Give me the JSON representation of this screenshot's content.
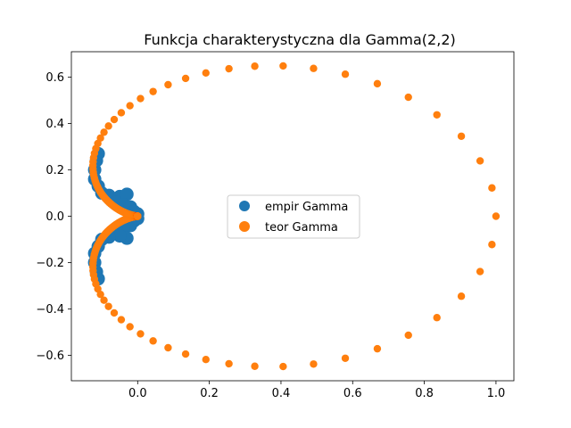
{
  "chart_data": {
    "type": "scatter",
    "title": "Funkcja charakterystyczna dla Gamma(2,2)",
    "xlabel": "",
    "ylabel": "",
    "xlim": [
      -0.185,
      1.05
    ],
    "ylim": [
      -0.71,
      0.71
    ],
    "x_ticks": [
      0.0,
      0.2,
      0.4,
      0.6,
      0.8,
      1.0
    ],
    "x_tick_labels": [
      "0.0",
      "0.2",
      "0.4",
      "0.6",
      "0.8",
      "1.0"
    ],
    "y_ticks": [
      -0.6,
      -0.4,
      -0.2,
      0.0,
      0.2,
      0.4,
      0.6
    ],
    "y_tick_labels": [
      "−0.6",
      "−0.4",
      "−0.2",
      "0.0",
      "0.2",
      "0.4",
      "0.6"
    ],
    "grid": false,
    "legend_position": "center",
    "series": [
      {
        "name": "empir Gamma",
        "color": "#1f77b4",
        "marker": "circle",
        "points": [
          [
            -0.12,
            0.2
          ],
          [
            -0.115,
            0.24
          ],
          [
            -0.11,
            0.27
          ],
          [
            -0.12,
            0.16
          ],
          [
            -0.11,
            0.13
          ],
          [
            -0.1,
            0.1
          ],
          [
            -0.08,
            0.09
          ],
          [
            -0.05,
            0.085
          ],
          [
            -0.03,
            0.095
          ],
          [
            -0.06,
            0.06
          ],
          [
            -0.04,
            0.05
          ],
          [
            -0.02,
            0.04
          ],
          [
            -0.01,
            0.02
          ],
          [
            -0.02,
            0.0
          ],
          [
            -0.01,
            -0.02
          ],
          [
            -0.02,
            -0.04
          ],
          [
            -0.04,
            -0.05
          ],
          [
            -0.06,
            -0.06
          ],
          [
            -0.03,
            -0.095
          ],
          [
            -0.05,
            -0.085
          ],
          [
            -0.08,
            -0.09
          ],
          [
            -0.1,
            -0.1
          ],
          [
            -0.11,
            -0.13
          ],
          [
            -0.12,
            -0.16
          ],
          [
            -0.12,
            -0.2
          ],
          [
            -0.115,
            -0.24
          ],
          [
            -0.11,
            -0.27
          ],
          [
            -0.005,
            0.0
          ],
          [
            0.0,
            0.01
          ],
          [
            0.0,
            -0.01
          ]
        ]
      },
      {
        "name": "teor Gamma",
        "color": "#ff7f0e",
        "marker": "circle",
        "curve": "Re/Im of (1 - 2it)^-2 for t in [-40, 40]"
      }
    ]
  }
}
